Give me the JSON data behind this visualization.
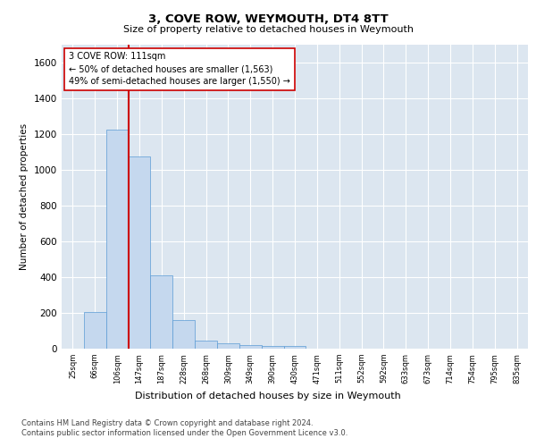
{
  "title": "3, COVE ROW, WEYMOUTH, DT4 8TT",
  "subtitle": "Size of property relative to detached houses in Weymouth",
  "xlabel": "Distribution of detached houses by size in Weymouth",
  "ylabel": "Number of detached properties",
  "footnote1": "Contains HM Land Registry data © Crown copyright and database right 2024.",
  "footnote2": "Contains public sector information licensed under the Open Government Licence v3.0.",
  "bar_labels": [
    "25sqm",
    "66sqm",
    "106sqm",
    "147sqm",
    "187sqm",
    "228sqm",
    "268sqm",
    "309sqm",
    "349sqm",
    "390sqm",
    "430sqm",
    "471sqm",
    "511sqm",
    "552sqm",
    "592sqm",
    "633sqm",
    "673sqm",
    "714sqm",
    "754sqm",
    "795sqm",
    "835sqm"
  ],
  "bar_values": [
    0,
    205,
    1225,
    1075,
    410,
    160,
    43,
    28,
    20,
    15,
    13,
    0,
    0,
    0,
    0,
    0,
    0,
    0,
    0,
    0,
    0
  ],
  "bar_color": "#c5d8ee",
  "bar_edge_color": "#5b9bd5",
  "ylim": [
    0,
    1700
  ],
  "yticks": [
    0,
    200,
    400,
    600,
    800,
    1000,
    1200,
    1400,
    1600
  ],
  "vline_color": "#cc0000",
  "annotation_text": "3 COVE ROW: 111sqm\n← 50% of detached houses are smaller (1,563)\n49% of semi-detached houses are larger (1,550) →",
  "annotation_box_color": "#cc0000",
  "background_color": "#dce6f0",
  "grid_color": "#ffffff"
}
